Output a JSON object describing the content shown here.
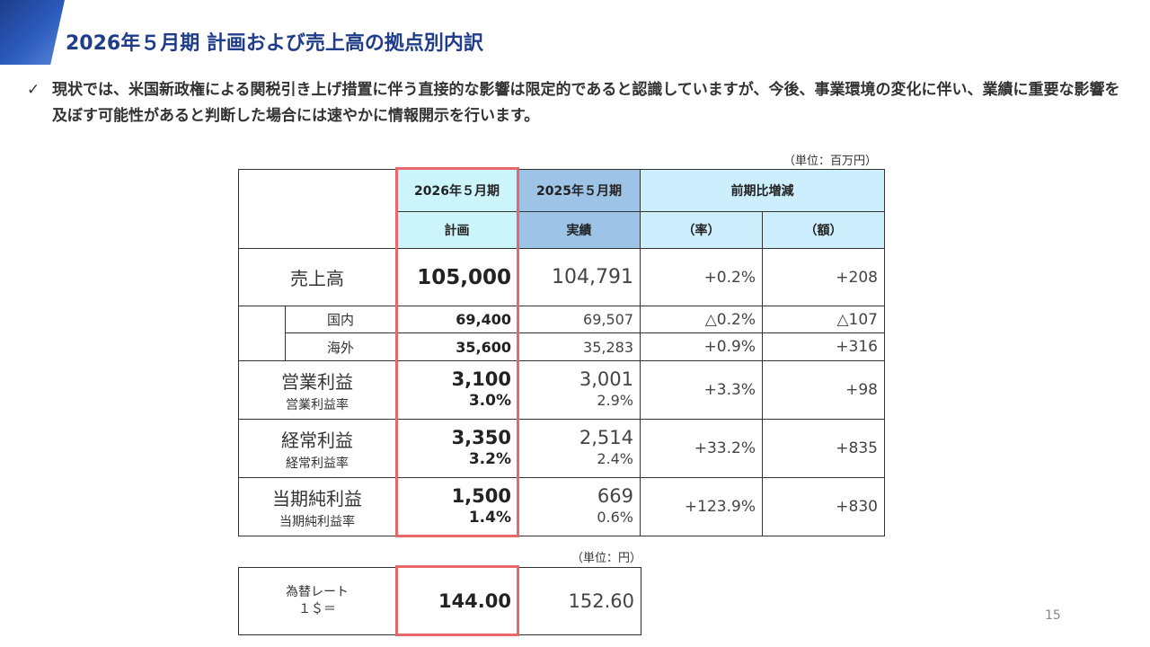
{
  "title": "2026年５月期 計画および売上高の拠点別内訳",
  "bullet": {
    "mark": "✓",
    "text": "現状では、米国新政権による関税引き上げ措置に伴う直接的な影響は限定的であると認識していますが、今後、事業環境の変化に伴い、業績に重要な影響を及ぼす可能性があると判断した場合には速やかに情報開示を行います。"
  },
  "unit_main": "（単位：百万円）",
  "unit_fx": "（単位：円）",
  "headers": {
    "plan_period": "2026年５月期",
    "actual_period": "2025年５月期",
    "diff": "前期比増減",
    "plan": "計画",
    "actual": "実績",
    "rate": "（率）",
    "amount": "（額）"
  },
  "rows": {
    "sales": {
      "label": "売上高",
      "plan": "105,000",
      "actual": "104,791",
      "rate": "+0.2%",
      "amount": "+208"
    },
    "domestic": {
      "label": "国内",
      "plan": "69,400",
      "actual": "69,507",
      "rate": "△0.2%",
      "amount": "△107"
    },
    "overseas": {
      "label": "海外",
      "plan": "35,600",
      "actual": "35,283",
      "rate": "+0.9%",
      "amount": "+316"
    },
    "operating": {
      "label": "営業利益",
      "sublabel": "営業利益率",
      "plan": "3,100",
      "plan_margin": "3.0%",
      "actual": "3,001",
      "actual_margin": "2.9%",
      "rate": "+3.3%",
      "amount": "+98"
    },
    "ordinary": {
      "label": "経常利益",
      "sublabel": "経常利益率",
      "plan": "3,350",
      "plan_margin": "3.2%",
      "actual": "2,514",
      "actual_margin": "2.4%",
      "rate": "+33.2%",
      "amount": "+835"
    },
    "net": {
      "label": "当期純利益",
      "sublabel": "当期純利益率",
      "plan": "1,500",
      "plan_margin": "1.4%",
      "actual": "669",
      "actual_margin": "0.6%",
      "rate": "+123.9%",
      "amount": "+830"
    }
  },
  "fx": {
    "label_line1": "為替レート",
    "label_line2": "１＄＝",
    "plan": "144.00",
    "actual": "152.60"
  },
  "page_number": "15",
  "colors": {
    "title": "#1f3d8a",
    "highlight": "#e8686a",
    "plan_header": "#ccf4fb",
    "actual_header": "#9dc3e6",
    "diff_header": "#cdeefc"
  }
}
